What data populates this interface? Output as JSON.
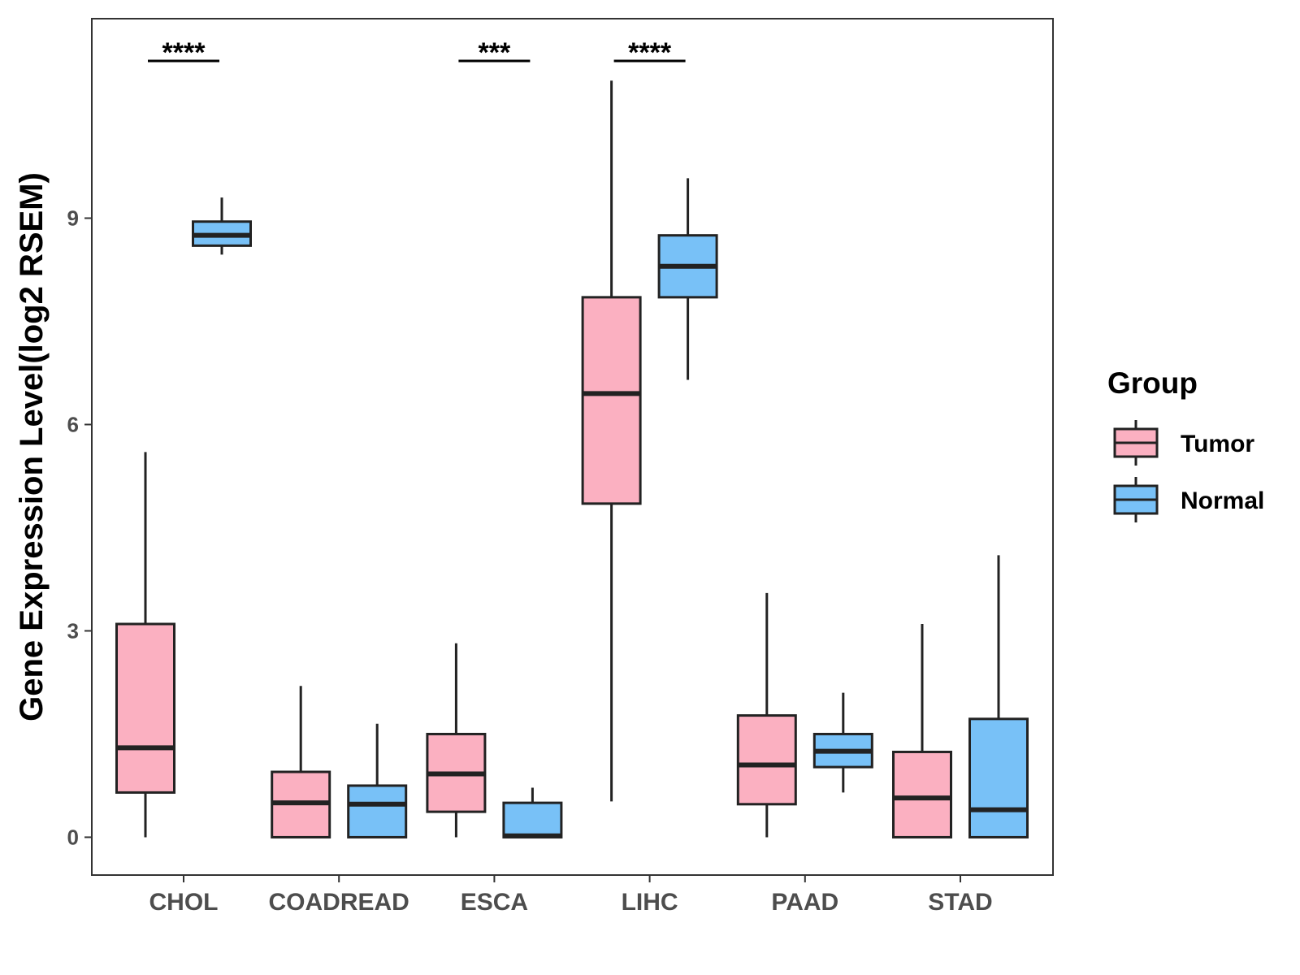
{
  "chart_data": {
    "type": "boxplot",
    "ylabel": "Gene Expression Level(log2 RSEM)",
    "xlabel": "",
    "ylim": [
      -0.55,
      11.9
    ],
    "yticks": [
      0,
      3,
      6,
      9
    ],
    "categories": [
      "CHOL",
      "COADREAD",
      "ESCA",
      "LIHC",
      "PAAD",
      "STAD"
    ],
    "legend": {
      "title": "Group",
      "position": "right",
      "entries": [
        {
          "name": "Tumor",
          "color": "#fbb0c1"
        },
        {
          "name": "Normal",
          "color": "#78c1f7"
        }
      ]
    },
    "series": [
      {
        "name": "Tumor",
        "color": "#fbb0c1",
        "boxes": [
          {
            "category": "CHOL",
            "min": 0.0,
            "q1": 0.65,
            "median": 1.3,
            "q3": 3.1,
            "max": 5.6
          },
          {
            "category": "COADREAD",
            "min": 0.0,
            "q1": 0.0,
            "median": 0.5,
            "q3": 0.95,
            "max": 2.2
          },
          {
            "category": "ESCA",
            "min": 0.0,
            "q1": 0.37,
            "median": 0.92,
            "q3": 1.5,
            "max": 2.82
          },
          {
            "category": "LIHC",
            "min": 0.52,
            "q1": 4.85,
            "median": 6.45,
            "q3": 7.85,
            "max": 11.0
          },
          {
            "category": "PAAD",
            "min": 0.0,
            "q1": 0.48,
            "median": 1.05,
            "q3": 1.77,
            "max": 3.55
          },
          {
            "category": "STAD",
            "min": 0.0,
            "q1": 0.0,
            "median": 0.57,
            "q3": 1.24,
            "max": 3.1
          }
        ]
      },
      {
        "name": "Normal",
        "color": "#78c1f7",
        "boxes": [
          {
            "category": "CHOL",
            "min": 8.47,
            "q1": 8.6,
            "median": 8.75,
            "q3": 8.95,
            "max": 9.3
          },
          {
            "category": "COADREAD",
            "min": 0.0,
            "q1": 0.0,
            "median": 0.48,
            "q3": 0.75,
            "max": 1.65
          },
          {
            "category": "ESCA",
            "min": 0.0,
            "q1": 0.0,
            "median": 0.02,
            "q3": 0.5,
            "max": 0.72
          },
          {
            "category": "LIHC",
            "min": 6.65,
            "q1": 7.85,
            "median": 8.3,
            "q3": 8.75,
            "max": 9.58
          },
          {
            "category": "PAAD",
            "min": 0.65,
            "q1": 1.02,
            "median": 1.25,
            "q3": 1.5,
            "max": 2.1
          },
          {
            "category": "STAD",
            "min": 0.0,
            "q1": 0.0,
            "median": 0.4,
            "q3": 1.72,
            "max": 4.1
          }
        ]
      }
    ],
    "annotations": [
      {
        "category": "CHOL",
        "text": "****"
      },
      {
        "category": "ESCA",
        "text": "***"
      },
      {
        "category": "LIHC",
        "text": "****"
      }
    ]
  }
}
